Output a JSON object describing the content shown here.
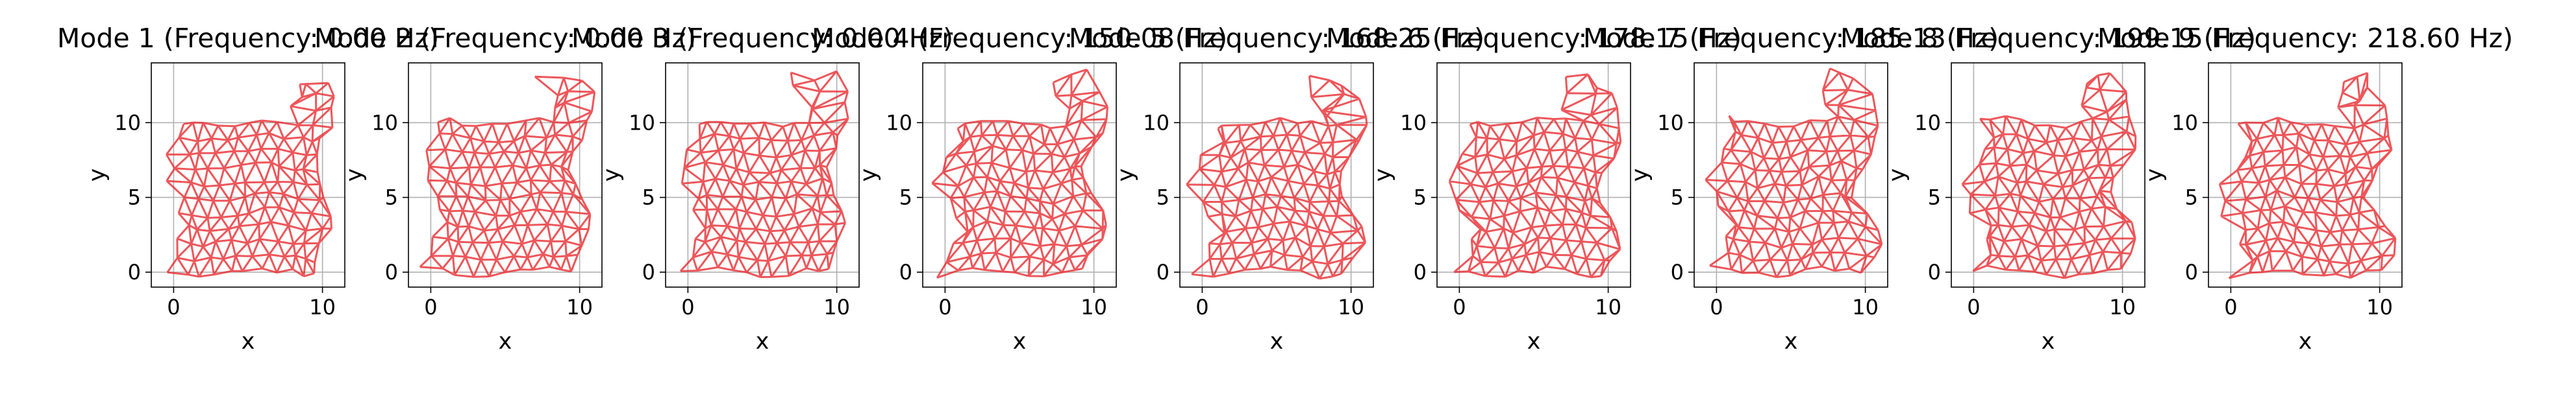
{
  "chart_data": [
    {
      "type": "mesh",
      "title": "Mode 1 (Frequency: 0.00 Hz)",
      "xlabel": "x",
      "ylabel": "y",
      "xticks": [
        "0",
        "10"
      ],
      "yticks": [
        "0",
        "5",
        "10"
      ],
      "xlim": [
        -1.5,
        11.5
      ],
      "ylim": [
        -1,
        14
      ],
      "grid": true
    },
    {
      "type": "mesh",
      "title": "Mode 2 (Frequency: 0.00 Hz)",
      "xlabel": "x",
      "ylabel": "y",
      "xticks": [
        "0",
        "10"
      ],
      "yticks": [
        "0",
        "5",
        "10"
      ],
      "xlim": [
        -1.5,
        11.5
      ],
      "ylim": [
        -1,
        14
      ],
      "grid": true
    },
    {
      "type": "mesh",
      "title": "Mode 3 (Frequency: 0.00 Hz)",
      "xlabel": "x",
      "ylabel": "y",
      "xticks": [
        "0",
        "10"
      ],
      "yticks": [
        "0",
        "5",
        "10"
      ],
      "xlim": [
        -1.5,
        11.5
      ],
      "ylim": [
        -1,
        14
      ],
      "grid": true
    },
    {
      "type": "mesh",
      "title": "Mode 4 (Frequency: 150.08 Hz)",
      "xlabel": "x",
      "ylabel": "y",
      "xticks": [
        "0",
        "10"
      ],
      "yticks": [
        "0",
        "5",
        "10"
      ],
      "xlim": [
        -1.5,
        11.5
      ],
      "ylim": [
        -1,
        14
      ],
      "grid": true
    },
    {
      "type": "mesh",
      "title": "Mode 5 (Frequency: 168.25 Hz)",
      "xlabel": "x",
      "ylabel": "y",
      "xticks": [
        "0",
        "10"
      ],
      "yticks": [
        "0",
        "5",
        "10"
      ],
      "xlim": [
        -1.5,
        11.5
      ],
      "ylim": [
        -1,
        14
      ],
      "grid": true
    },
    {
      "type": "mesh",
      "title": "Mode 6 (Frequency: 178.15 Hz)",
      "xlabel": "x",
      "ylabel": "y",
      "xticks": [
        "0",
        "10"
      ],
      "yticks": [
        "0",
        "5",
        "10"
      ],
      "xlim": [
        -1.5,
        11.5
      ],
      "ylim": [
        -1,
        14
      ],
      "grid": true
    },
    {
      "type": "mesh",
      "title": "Mode 7 (Frequency: 185.13 Hz)",
      "xlabel": "x",
      "ylabel": "y",
      "xticks": [
        "0",
        "10"
      ],
      "yticks": [
        "0",
        "5",
        "10"
      ],
      "xlim": [
        -1.5,
        11.5
      ],
      "ylim": [
        -1,
        14
      ],
      "grid": true
    },
    {
      "type": "mesh",
      "title": "Mode 8 (Frequency: 199.15 Hz)",
      "xlabel": "x",
      "ylabel": "y",
      "xticks": [
        "0",
        "10"
      ],
      "yticks": [
        "0",
        "5",
        "10"
      ],
      "xlim": [
        -1.5,
        11.5
      ],
      "ylim": [
        -1,
        14
      ],
      "grid": true
    },
    {
      "type": "mesh",
      "title": "Mode 9 (Frequency: 218.60 Hz)",
      "xlabel": "x",
      "ylabel": "y",
      "xticks": [
        "0",
        "10"
      ],
      "yticks": [
        "0",
        "5",
        "10"
      ],
      "xlim": [
        -1.5,
        11.5
      ],
      "ylim": [
        -1,
        14
      ],
      "grid": true
    }
  ],
  "colors": {
    "mesh": "#e8272c",
    "grid": "#b0b0b0",
    "axes": "#000000"
  }
}
